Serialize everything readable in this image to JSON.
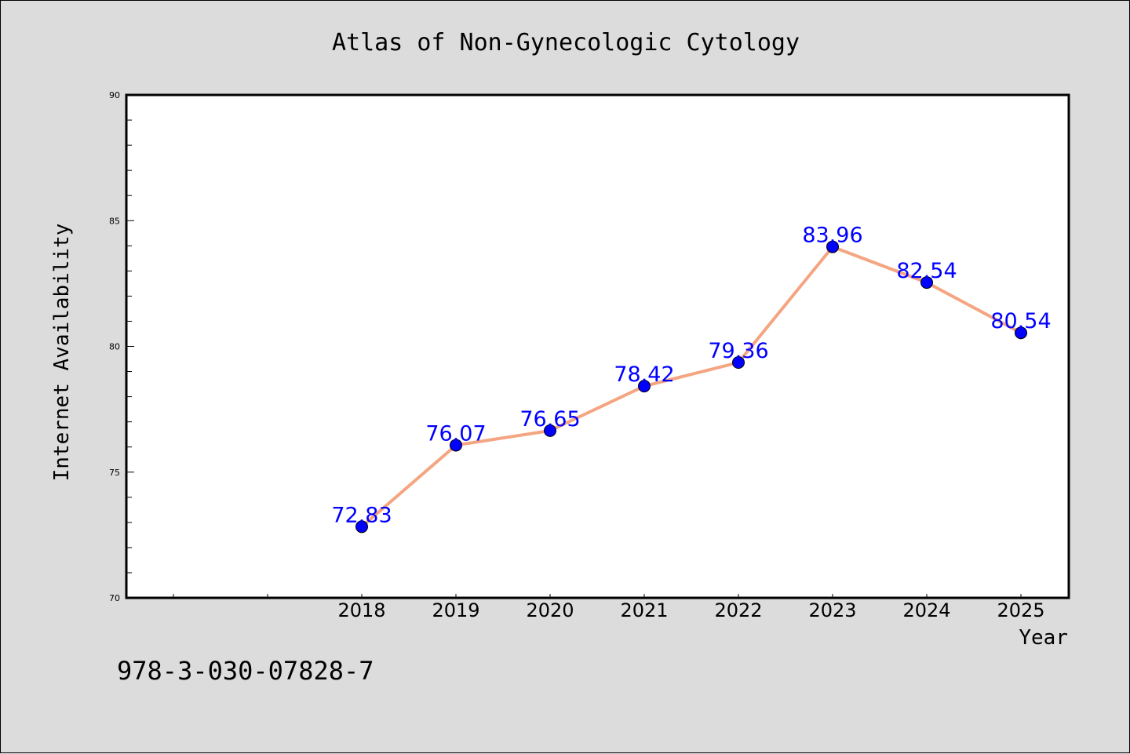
{
  "chart_data": {
    "type": "line",
    "title": "Atlas of Non-Gynecologic Cytology",
    "xlabel": "Year",
    "ylabel": "Internet Availability",
    "categories": [
      "2018",
      "2019",
      "2020",
      "2021",
      "2022",
      "2023",
      "2024",
      "2025"
    ],
    "series": [
      {
        "values": [
          72.83,
          76.07,
          76.65,
          78.42,
          79.36,
          83.96,
          82.54,
          80.54
        ],
        "line_color": "#f4a582",
        "marker_color": "#0000ff",
        "label_color": "#0000ff"
      }
    ],
    "data_labels": [
      "72.83",
      "76.07",
      "76.65",
      "78.42",
      "79.36",
      "83.96",
      "82.54",
      "80.54"
    ],
    "ylim": [
      70,
      90
    ],
    "yticks": [
      "70",
      "75",
      "80",
      "85",
      "90"
    ],
    "grid": false,
    "legend": "none",
    "footer": "978-3-030-07828-7"
  }
}
